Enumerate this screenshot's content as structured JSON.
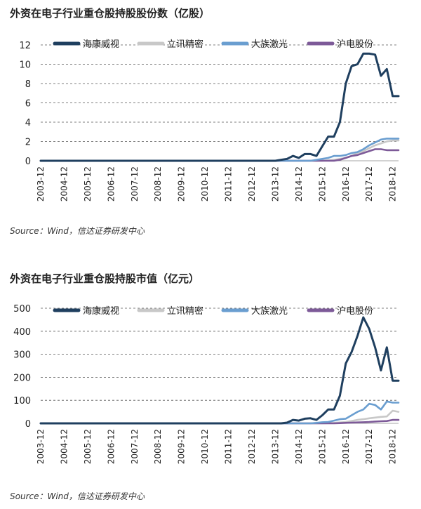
{
  "figures": [
    {
      "title": "外资在电子行业重仓股持股股份数（亿股）",
      "source": "Source：Wind，信达证券研发中心"
    },
    {
      "title": "外资在电子行业重仓股持股市值（亿元）",
      "source": "Source：Wind，信达证券研发中心"
    }
  ],
  "colors": {
    "海康威视": "#1f3f5f",
    "立讯精密": "#c8c8c8",
    "大族激光": "#6a9ed0",
    "沪电股份": "#7d5a98",
    "grid": "#555555"
  },
  "chart_data": [
    {
      "type": "line",
      "title": "外资在电子行业重仓股持股股份数（亿股）",
      "x_tick_labels": [
        "2003-12",
        "2004-12",
        "2005-12",
        "2006-12",
        "2007-12",
        "2008-12",
        "2009-12",
        "2010-12",
        "2011-12",
        "2012-12",
        "2013-12",
        "2014-12",
        "2015-12",
        "2016-12",
        "2017-12",
        "2018-12"
      ],
      "ylim": [
        0,
        12
      ],
      "y_ticks": [
        0,
        2,
        4,
        6,
        8,
        10,
        12
      ],
      "grid": true,
      "legend": "top",
      "x": [
        "2003-12",
        "2004-06",
        "2004-12",
        "2005-06",
        "2005-12",
        "2006-06",
        "2006-12",
        "2007-06",
        "2007-12",
        "2008-06",
        "2008-12",
        "2009-06",
        "2009-12",
        "2010-06",
        "2010-12",
        "2011-06",
        "2011-12",
        "2012-06",
        "2012-12",
        "2013-06",
        "2013-12",
        "2014-03",
        "2014-06",
        "2014-09",
        "2014-12",
        "2015-03",
        "2015-06",
        "2015-09",
        "2015-12",
        "2016-03",
        "2016-06",
        "2016-09",
        "2016-12",
        "2017-03",
        "2017-06",
        "2017-09",
        "2017-12",
        "2018-03",
        "2018-06",
        "2018-09",
        "2018-12",
        "2019-03"
      ],
      "series": [
        {
          "name": "海康威视",
          "values": [
            0,
            0,
            0,
            0,
            0,
            0,
            0,
            0,
            0,
            0,
            0,
            0,
            0,
            0,
            0,
            0,
            0,
            0,
            0,
            0,
            0,
            0.1,
            0.2,
            0.5,
            0.3,
            0.7,
            0.7,
            0.5,
            1.5,
            2.5,
            2.5,
            4.0,
            8.0,
            9.8,
            10.0,
            11.1,
            11.1,
            11.0,
            8.8,
            9.5,
            6.7,
            6.7
          ]
        },
        {
          "name": "立讯精密",
          "values": [
            0,
            0,
            0,
            0,
            0,
            0,
            0,
            0,
            0,
            0,
            0,
            0,
            0,
            0,
            0,
            0,
            0,
            0,
            0,
            0,
            0,
            0,
            0,
            0,
            0,
            0,
            0,
            0,
            0,
            0.05,
            0.1,
            0.2,
            0.3,
            0.5,
            0.8,
            1.0,
            1.3,
            1.6,
            1.8,
            2.0,
            2.1,
            2.1
          ]
        },
        {
          "name": "大族激光",
          "values": [
            0,
            0,
            0,
            0,
            0,
            0,
            0,
            0,
            0,
            0,
            0,
            0,
            0,
            0,
            0,
            0,
            0,
            0,
            0,
            0,
            0,
            0,
            0,
            0,
            0,
            0,
            0,
            0.1,
            0.2,
            0.3,
            0.5,
            0.5,
            0.6,
            0.8,
            0.9,
            1.2,
            1.6,
            1.9,
            2.2,
            2.3,
            2.3,
            2.3
          ]
        },
        {
          "name": "沪电股份",
          "values": [
            0,
            0,
            0,
            0,
            0,
            0,
            0,
            0,
            0,
            0,
            0,
            0,
            0,
            0,
            0,
            0,
            0,
            0,
            0,
            0,
            0,
            0,
            0,
            0,
            0,
            0,
            0,
            0,
            0,
            0,
            0,
            0.1,
            0.3,
            0.5,
            0.6,
            0.8,
            1.0,
            1.2,
            1.2,
            1.1,
            1.1,
            1.1
          ]
        }
      ]
    },
    {
      "type": "line",
      "title": "外资在电子行业重仓股持股市值（亿元）",
      "x_tick_labels": [
        "2003-12",
        "2004-12",
        "2005-12",
        "2006-12",
        "2007-12",
        "2008-12",
        "2009-12",
        "2010-12",
        "2011-12",
        "2012-12",
        "2013-12",
        "2014-12",
        "2015-12",
        "2016-12",
        "2017-12",
        "2018-12"
      ],
      "ylim": [
        0,
        500
      ],
      "y_ticks": [
        0,
        100,
        200,
        300,
        400,
        500
      ],
      "grid": true,
      "legend": "top",
      "x": [
        "2003-12",
        "2004-06",
        "2004-12",
        "2005-06",
        "2005-12",
        "2006-06",
        "2006-12",
        "2007-06",
        "2007-12",
        "2008-06",
        "2008-12",
        "2009-06",
        "2009-12",
        "2010-06",
        "2010-12",
        "2011-06",
        "2011-12",
        "2012-06",
        "2012-12",
        "2013-06",
        "2013-12",
        "2014-03",
        "2014-06",
        "2014-09",
        "2014-12",
        "2015-03",
        "2015-06",
        "2015-09",
        "2015-12",
        "2016-03",
        "2016-06",
        "2016-09",
        "2016-12",
        "2017-03",
        "2017-06",
        "2017-09",
        "2017-12",
        "2018-03",
        "2018-06",
        "2018-09",
        "2018-12",
        "2019-03"
      ],
      "series": [
        {
          "name": "海康威视",
          "values": [
            0,
            0,
            0,
            0,
            0,
            0,
            0,
            0,
            0,
            0,
            0,
            0,
            0,
            0,
            0,
            0,
            0,
            0,
            0,
            0,
            0,
            0,
            3,
            15,
            12,
            20,
            22,
            15,
            35,
            60,
            60,
            120,
            260,
            310,
            380,
            460,
            410,
            330,
            230,
            330,
            185,
            185
          ]
        },
        {
          "name": "立讯精密",
          "values": [
            0,
            0,
            0,
            0,
            0,
            0,
            0,
            0,
            0,
            0,
            0,
            0,
            0,
            0,
            0,
            0,
            0,
            0,
            0,
            0,
            0,
            0,
            0,
            0,
            0,
            0,
            0,
            0,
            0,
            1,
            2,
            4,
            6,
            10,
            15,
            18,
            22,
            25,
            28,
            30,
            55,
            50
          ]
        },
        {
          "name": "大族激光",
          "values": [
            0,
            0,
            0,
            0,
            0,
            0,
            0,
            0,
            0,
            0,
            0,
            0,
            0,
            0,
            0,
            0,
            0,
            0,
            0,
            0,
            0,
            0,
            0,
            0,
            0,
            0,
            0,
            2,
            5,
            6,
            12,
            18,
            20,
            35,
            50,
            60,
            85,
            80,
            60,
            95,
            90,
            90
          ]
        },
        {
          "name": "沪电股份",
          "values": [
            0,
            0,
            0,
            0,
            0,
            0,
            0,
            0,
            0,
            0,
            0,
            0,
            0,
            0,
            0,
            0,
            0,
            0,
            0,
            0,
            0,
            0,
            0,
            0,
            0,
            0,
            0,
            0,
            0,
            0,
            0,
            1,
            2,
            3,
            4,
            5,
            6,
            8,
            9,
            10,
            15,
            15
          ]
        }
      ]
    }
  ]
}
